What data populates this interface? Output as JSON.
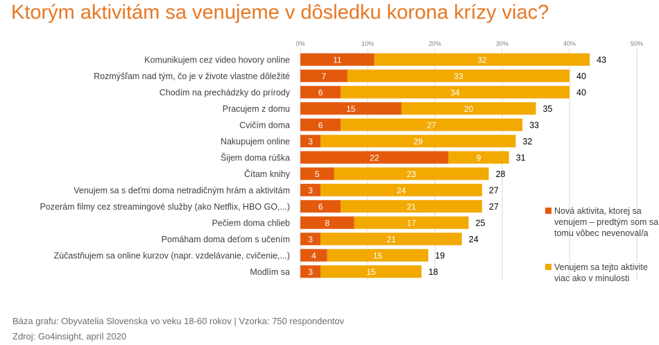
{
  "title": "Ktorým aktivitám sa venujeme v dôsledku korona krízy viac?",
  "chart_data": {
    "type": "bar",
    "orientation": "horizontal",
    "stacked": true,
    "categories": [
      "Komunikujem cez video hovory online",
      "Rozmýšľam nad tým, čo je v živote vlastne dôležité",
      "Chodím na prechádzky do prírody",
      "Pracujem z domu",
      "Cvičím doma",
      "Nakupujem online",
      "Šijem doma rúška",
      "Čítam knihy",
      "Venujem sa s deťmi doma netradičným hrám a aktivitám",
      "Pozerám filmy cez streamingové služby (ako Netflix, HBO GO,...)",
      "Pečiem doma chlieb",
      "Pomáham doma deťom s učením",
      "Zúčastňujem sa online kurzov (napr. vzdelávanie, cvičenie,...)",
      "Modlím sa"
    ],
    "series": [
      {
        "name": "Nová aktivita, ktorej sa venujem – predtým som sa tomu vôbec nevenoval/a",
        "color": "#E35A0D",
        "values": [
          11,
          7,
          6,
          15,
          6,
          3,
          22,
          5,
          3,
          6,
          8,
          3,
          4,
          3
        ]
      },
      {
        "name": "Venujem sa tejto aktivite viac ako v minulosti",
        "color": "#F2A900",
        "values": [
          32,
          33,
          34,
          20,
          27,
          29,
          9,
          23,
          24,
          21,
          17,
          21,
          15,
          15
        ]
      }
    ],
    "totals": [
      43,
      40,
      40,
      35,
      33,
      32,
      31,
      28,
      27,
      27,
      25,
      24,
      19,
      18
    ],
    "xlim": [
      0,
      50
    ],
    "xticks": [
      "0%",
      "10%",
      "20%",
      "30%",
      "40%",
      "50%"
    ],
    "grid": true,
    "legend_position": "right"
  },
  "legend": [
    {
      "label": "Nová aktivita, ktorej sa venujem – predtým som sa tomu vôbec nevenoval/a",
      "color": "#E35A0D"
    },
    {
      "label": "Venujem sa tejto aktivite viac ako v minulosti",
      "color": "#F2A900"
    }
  ],
  "footnotes": {
    "base": "Báza grafu: Obyvatelia Slovenska vo veku 18-60 rokov | Vzorka: 750 respondentov",
    "source": "Zdroj: Go4insight, apríl 2020"
  }
}
